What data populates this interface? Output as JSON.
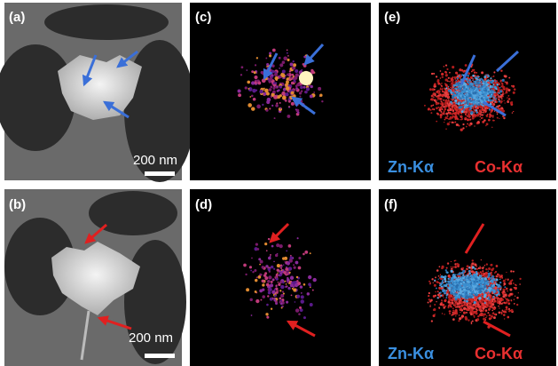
{
  "panels": [
    {
      "label": "(a)",
      "scale_bar": "200 nm"
    },
    {
      "label": "(c)"
    },
    {
      "label": "(e)",
      "legend": [
        "Zn-Kα",
        "Co-Kα"
      ]
    },
    {
      "label": "(b)",
      "scale_bar": "200 nm"
    },
    {
      "label": "(d)"
    },
    {
      "label": "(f)",
      "legend": [
        "Zn-Kα",
        "Co-Kα"
      ]
    }
  ]
}
